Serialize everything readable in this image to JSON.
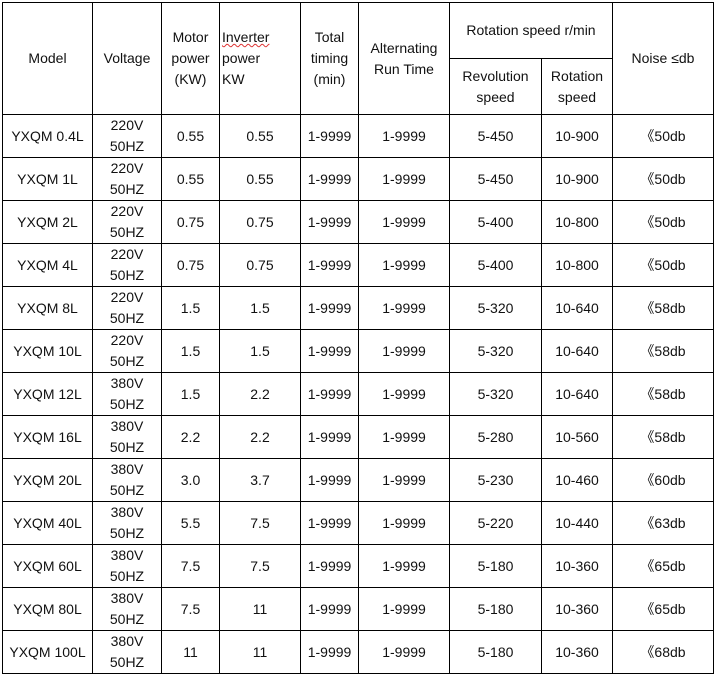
{
  "headers": {
    "model": "Model",
    "voltage": "Voltage",
    "motor_power": [
      "Motor",
      "power",
      "(KW)"
    ],
    "inverter_power": [
      "Inverter",
      "power",
      "KW"
    ],
    "total_timing": [
      "Total",
      "timing",
      "(min)"
    ],
    "alternating": [
      "Alternating",
      "Run Time"
    ],
    "rotation_group": "Rotation speed  r/min",
    "revolution_speed": [
      "Revolution",
      "speed"
    ],
    "rotation_speed": [
      "Rotation",
      "speed"
    ],
    "noise": "Noise ≤db"
  },
  "rows": [
    [
      "YXQM 0.4L",
      "220V",
      "50HZ",
      "0.55",
      "0.55",
      "1-9999",
      "1-9999",
      "5-450",
      "10-900",
      "《50db"
    ],
    [
      "YXQM 1L",
      "220V",
      "50HZ",
      "0.55",
      "0.55",
      "1-9999",
      "1-9999",
      "5-450",
      "10-900",
      "《50db"
    ],
    [
      "YXQM 2L",
      "220V",
      "50HZ",
      "0.75",
      "0.75",
      "1-9999",
      "1-9999",
      "5-400",
      "10-800",
      "《50db"
    ],
    [
      "YXQM 4L",
      "220V",
      "50HZ",
      "0.75",
      "0.75",
      "1-9999",
      "1-9999",
      "5-400",
      "10-800",
      "《50db"
    ],
    [
      "YXQM 8L",
      "220V",
      "50HZ",
      "1.5",
      "1.5",
      "1-9999",
      "1-9999",
      "5-320",
      "10-640",
      "《58db"
    ],
    [
      "YXQM 10L",
      "220V",
      "50HZ",
      "1.5",
      "1.5",
      "1-9999",
      "1-9999",
      "5-320",
      "10-640",
      "《58db"
    ],
    [
      "YXQM 12L",
      "380V",
      "50HZ",
      "1.5",
      "2.2",
      "1-9999",
      "1-9999",
      "5-320",
      "10-640",
      "《58db"
    ],
    [
      "YXQM 16L",
      "380V",
      "50HZ",
      "2.2",
      "2.2",
      "1-9999",
      "1-9999",
      "5-280",
      "10-560",
      "《58db"
    ],
    [
      "YXQM 20L",
      "380V",
      "50HZ",
      "3.0",
      "3.7",
      "1-9999",
      "1-9999",
      "5-230",
      "10-460",
      "《60db"
    ],
    [
      "YXQM 40L",
      "380V",
      "50HZ",
      "5.5",
      "7.5",
      "1-9999",
      "1-9999",
      "5-220",
      "10-440",
      "《63db"
    ],
    [
      "YXQM 60L",
      "380V",
      "50HZ",
      "7.5",
      "7.5",
      "1-9999",
      "1-9999",
      "5-180",
      "10-360",
      "《65db"
    ],
    [
      "YXQM 80L",
      "380V",
      "50HZ",
      "7.5",
      "11",
      "1-9999",
      "1-9999",
      "5-180",
      "10-360",
      "《65db"
    ],
    [
      "YXQM 100L",
      "380V",
      "50HZ",
      "11",
      "11",
      "1-9999",
      "1-9999",
      "5-180",
      "10-360",
      "《68db"
    ]
  ]
}
